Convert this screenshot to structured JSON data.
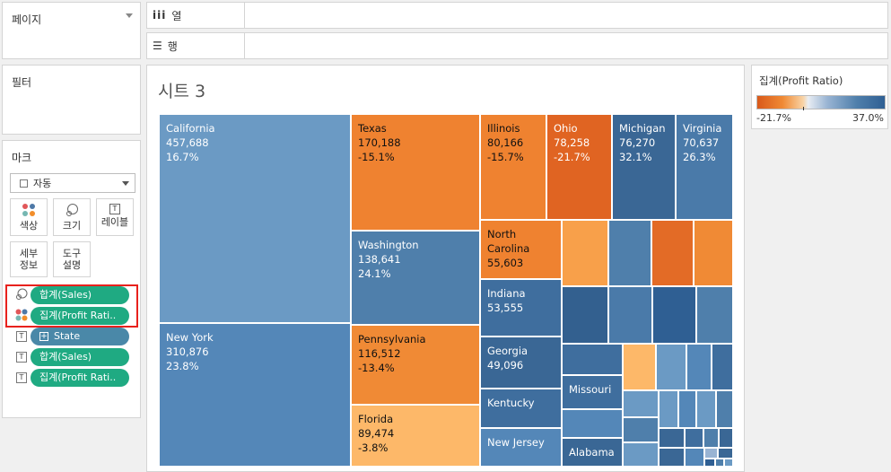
{
  "shelves": {
    "pages": "페이지",
    "filters": "필터",
    "marks": "마크",
    "columns": "열",
    "rows": "행"
  },
  "marks": {
    "type": "자동",
    "buttons": {
      "color": "색상",
      "size": "크기",
      "label": "레이블",
      "detail": [
        "세부",
        "정보"
      ],
      "tooltip": [
        "도구",
        "설명"
      ]
    },
    "pills": [
      "합계(Sales)",
      "집계(Profit Rati..",
      "State",
      "합계(Sales)",
      "집계(Profit Rati.."
    ]
  },
  "sheet_title": "시트 3",
  "legend": {
    "title": "집계(Profit Ratio)",
    "min": "-21.7%",
    "max": "37.0%"
  },
  "tiles": [
    {
      "state": "California",
      "sales": "457,688",
      "ratio": "16.7%"
    },
    {
      "state": "New York",
      "sales": "310,876",
      "ratio": "23.8%"
    },
    {
      "state": "Texas",
      "sales": "170,188",
      "ratio": "-15.1%"
    },
    {
      "state": "Washington",
      "sales": "138,641",
      "ratio": "24.1%"
    },
    {
      "state": "Pennsylvania",
      "sales": "116,512",
      "ratio": "-13.4%"
    },
    {
      "state": "Florida",
      "sales": "89,474",
      "ratio": "-3.8%"
    },
    {
      "state": "Illinois",
      "sales": "80,166",
      "ratio": "-15.7%"
    },
    {
      "state": "Ohio",
      "sales": "78,258",
      "ratio": "-21.7%"
    },
    {
      "state": "Michigan",
      "sales": "76,270",
      "ratio": "32.1%"
    },
    {
      "state": "Virginia",
      "sales": "70,637",
      "ratio": "26.3%"
    },
    {
      "state": "North Carolina",
      "sales": "55,603"
    },
    {
      "state": "Indiana",
      "sales": "53,555"
    },
    {
      "state": "Georgia",
      "sales": "49,096"
    },
    {
      "state": "Kentucky"
    },
    {
      "state": "New Jersey"
    },
    {
      "state": "Missouri"
    },
    {
      "state": "Alabama"
    }
  ],
  "colors": {
    "orange_dark": "#e06422",
    "orange": "#f0812c",
    "orange_light": "#fdb869",
    "blue_light": "#6b9ac4",
    "blue": "#4f7fab",
    "blue_dark": "#3a6795",
    "pill_measure": "#1faa82",
    "pill_dimension": "#4a88a8",
    "highlight": "#e8211d"
  }
}
